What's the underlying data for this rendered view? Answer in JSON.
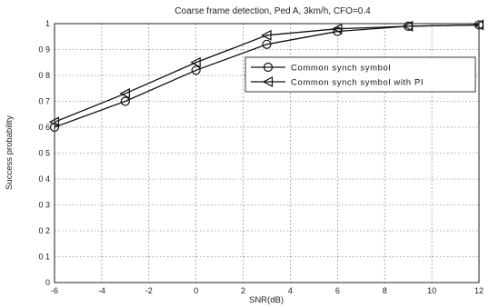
{
  "chart_data": {
    "type": "line",
    "title": "Coarse frame detection, Ped A, 3km/h, CFO=0.4",
    "xlabel": "SNR(dB)",
    "ylabel": "Success probability",
    "xlim": [
      -6,
      12
    ],
    "ylim": [
      0,
      1
    ],
    "xticks": [
      -6,
      -4,
      -2,
      0,
      2,
      4,
      6,
      8,
      10,
      12
    ],
    "xtick_labels": [
      "-6",
      "-4",
      "-2",
      "0",
      "2",
      "4",
      "6",
      "8",
      "10",
      "12"
    ],
    "yticks": [
      0,
      0.1,
      0.2,
      0.3,
      0.4,
      0.5,
      0.6,
      0.7,
      0.8,
      0.9,
      1
    ],
    "ytick_labels": [
      "0",
      "0 1",
      "0 2",
      "0 3",
      "0 4",
      "0 5",
      "0 6",
      "0 7",
      "0 8",
      "0 9",
      "1"
    ],
    "grid": true,
    "legend_position": "upper-right",
    "series": [
      {
        "name": "Common synch symbol",
        "marker": "circle",
        "x": [
          -6,
          -3,
          0,
          3,
          6,
          9,
          12
        ],
        "y": [
          0.6,
          0.7,
          0.82,
          0.92,
          0.97,
          0.99,
          0.995
        ]
      },
      {
        "name": "Common synch symbol with PI",
        "marker": "triangle-left",
        "x": [
          -6,
          -3,
          0,
          3,
          6,
          9,
          12
        ],
        "y": [
          0.62,
          0.73,
          0.85,
          0.955,
          0.98,
          0.99,
          0.995
        ]
      }
    ]
  }
}
